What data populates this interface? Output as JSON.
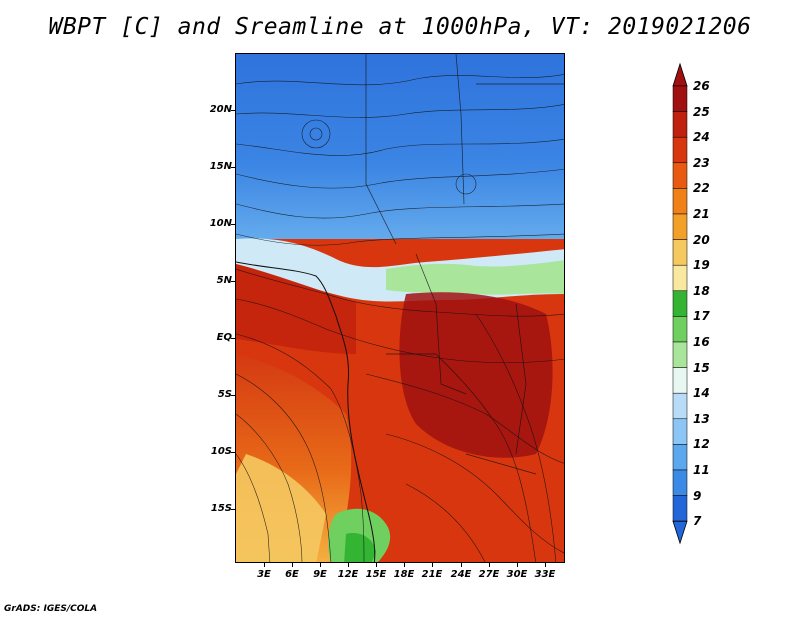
{
  "title": "WBPT [C] and Sreamline at 1000hPa, VT: 2019021206",
  "footer": "GrADS: IGES/COLA",
  "map": {
    "lat_labels": [
      "20N",
      "15N",
      "10N",
      "5N",
      "EQ",
      "5S",
      "10S",
      "15S"
    ],
    "lon_labels": [
      "3E",
      "6E",
      "9E",
      "12E",
      "15E",
      "18E",
      "21E",
      "24E",
      "27E",
      "30E",
      "33E"
    ],
    "fields": [
      "wet-bulb potential temperature (shaded)",
      "1000hPa streamlines"
    ]
  },
  "colorbar": {
    "levels": [
      "26",
      "25",
      "24",
      "23",
      "22",
      "21",
      "20",
      "19",
      "18",
      "17",
      "16",
      "15",
      "14",
      "13",
      "12",
      "11",
      "9",
      "7"
    ],
    "colors": [
      "#a01010",
      "#c0200e",
      "#d8360e",
      "#e85a12",
      "#f08018",
      "#f2a028",
      "#f5c860",
      "#f8e8a0",
      "#33b533",
      "#6fcf5f",
      "#a9e59a",
      "#e8f7f2",
      "#b8dcf8",
      "#8cc6f6",
      "#5ca8ef",
      "#3b8ae6",
      "#2266d8"
    ]
  }
}
